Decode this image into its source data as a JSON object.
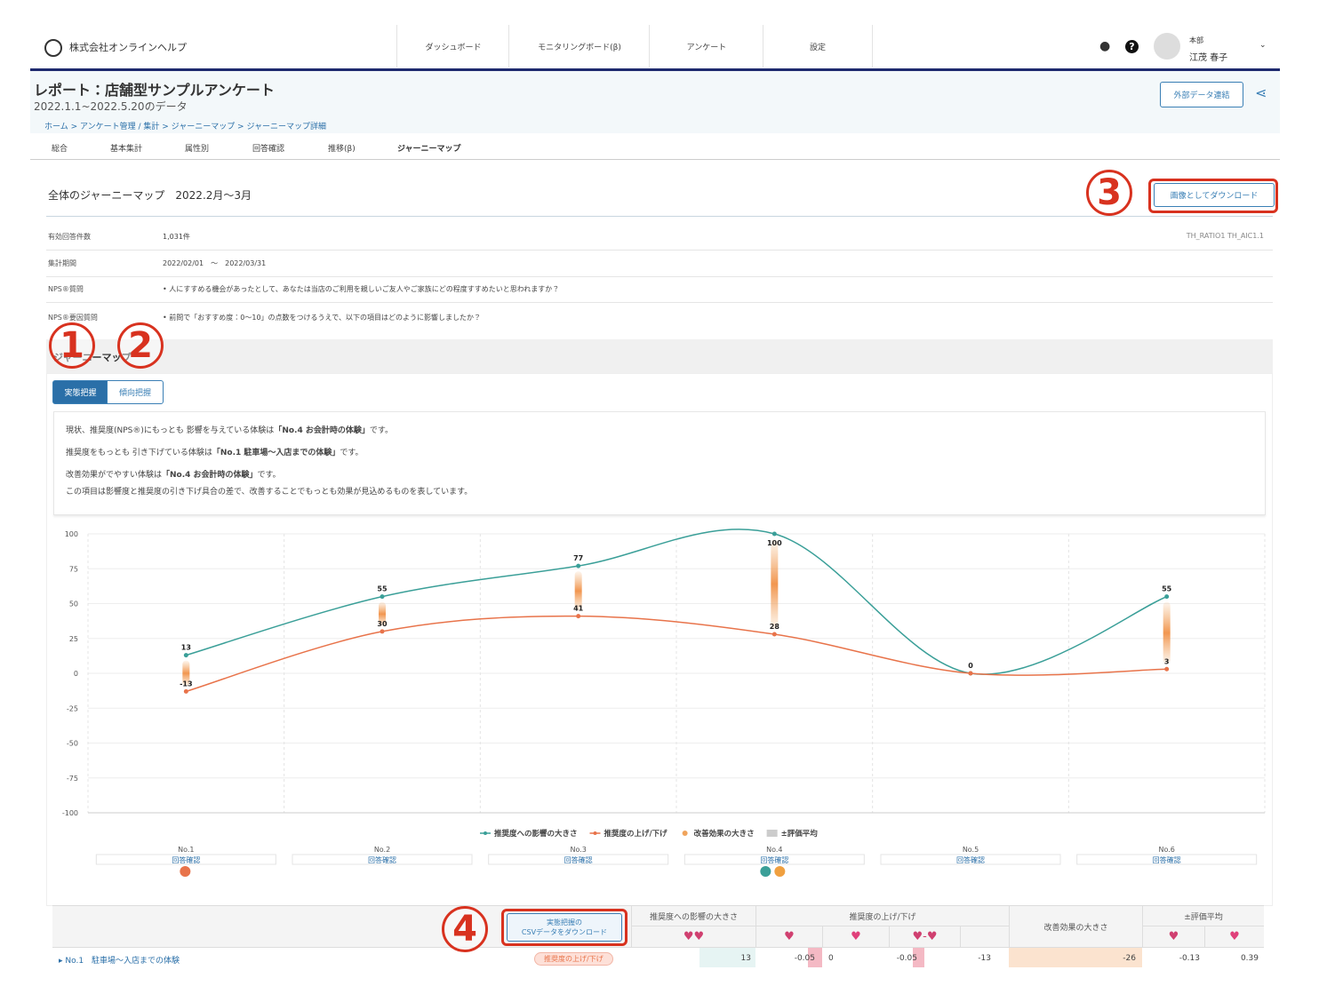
{
  "header": {
    "company": "株式会社オンラインヘルプ",
    "nav": [
      "ダッシュボード",
      "モニタリングボード(β)",
      "アンケート",
      "設定"
    ],
    "user": {
      "org": "本部",
      "name": "江茂 春子"
    }
  },
  "report": {
    "title": "レポート：店舗型サンプルアンケート",
    "period": "2022.1.1~2022.5.20のデータ",
    "button": "外部データ連結",
    "breadcrumb": "ホーム > アンケート管理 / 集計 > ジャーニーマップ > ジャーニーマップ詳細",
    "tabs": [
      "総合",
      "基本集計",
      "属性別",
      "回答確認",
      "推移(β)",
      "ジャーニーマップ"
    ]
  },
  "section": {
    "title": "全体のジャーニーマップ　2022.2月〜3月",
    "download": "画像としてダウンロード",
    "codes": "TH_RATIO1  TH_AIC1.1",
    "info": [
      {
        "label": "有効回答件数",
        "value": "1,031件"
      },
      {
        "label": "集計期間",
        "value": "2022/02/01　～　2022/03/31"
      },
      {
        "label": "NPS®質問",
        "value": "•  人にすすめる機会があったとして、あなたは当店のご利用を親しいご友人やご家族にどの程度すすめたいと思われますか？"
      },
      {
        "label": "NPS®要因質問",
        "value": "•  前問で「おすすめ度：0〜10」の点数をつけるうえで、以下の項目はどのように影響しましたか？"
      }
    ]
  },
  "annotations": [
    "1",
    "2",
    "3",
    "4"
  ],
  "journey": {
    "heading": "ジャーニーマップ",
    "toggle": [
      "実態把握",
      "傾向把握"
    ],
    "summary": [
      {
        "pre": "現状、推奨度(NPS®)にもっとも 影響を与えている体験は",
        "bold": "「No.4 お会計時の体験」",
        "post": "です。"
      },
      {
        "pre": "推奨度をもっとも 引き下げている体験は",
        "bold": "「No.1 駐車場〜入店までの体験」",
        "post": "です。"
      },
      {
        "pre": "改善効果がでやすい体験は",
        "bold": "「No.4 お会計時の体験」",
        "post": "です。"
      },
      {
        "pre": "この項目は影響度と推奨度の引き下げ具合の差で、改善することでもっとも効果が見込めるものを表しています。"
      }
    ]
  },
  "chart_data": {
    "type": "line",
    "categories": [
      "No.1",
      "No.2",
      "No.3",
      "No.4",
      "No.5",
      "No.6"
    ],
    "link": "回答確認",
    "series": [
      {
        "name": "推奨度への影響の大きさ",
        "color": "#3a9f98",
        "values": [
          13,
          55,
          77,
          100,
          0,
          55
        ]
      },
      {
        "name": "推奨度の上げ/下げ",
        "color": "#e8734a",
        "values": [
          -13,
          30,
          41,
          28,
          0,
          3
        ]
      }
    ],
    "effect": {
      "name": "改善効果の大きさ",
      "color": "#f0a45c"
    },
    "average": {
      "name": "±評価平均",
      "color": "#cccccc"
    },
    "ylim": [
      -100,
      100
    ],
    "yticks": [
      -100,
      -75,
      -50,
      -25,
      0,
      25,
      50,
      75,
      100
    ],
    "grid": true
  },
  "table": {
    "csv": [
      "実態把握の",
      "CSVデータをダウンロード"
    ],
    "headers": [
      "推奨度への影響の大きさ",
      "推奨度の上げ/下げ",
      "改善効果の大きさ",
      "±評価平均"
    ],
    "rows": [
      {
        "name": "No.1　駐車場〜入店までの体験",
        "badge": "推奨度の上げ/下げ",
        "values": [
          13,
          -0.05,
          0,
          -0.05,
          -13,
          -26,
          -0.13,
          0.39
        ]
      }
    ]
  }
}
